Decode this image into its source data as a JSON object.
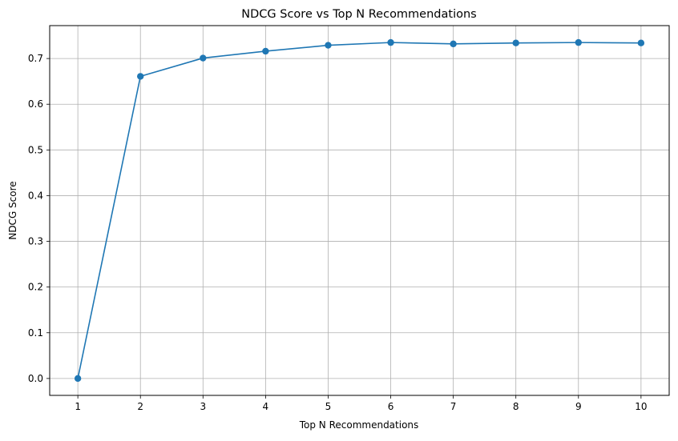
{
  "chart_data": {
    "type": "line",
    "title": "NDCG Score vs Top N Recommendations",
    "xlabel": "Top N Recommendations",
    "ylabel": "NDCG Score",
    "x": [
      1,
      2,
      3,
      4,
      5,
      6,
      7,
      8,
      9,
      10
    ],
    "series": [
      {
        "values": [
          0.0,
          0.661,
          0.701,
          0.716,
          0.729,
          0.735,
          0.732,
          0.734,
          0.735,
          0.734
        ],
        "color": "#1f77b4",
        "marker": "circle"
      }
    ],
    "xlim": [
      0.55,
      10.45
    ],
    "ylim": [
      -0.037,
      0.772
    ],
    "xticks": [
      1,
      2,
      3,
      4,
      5,
      6,
      7,
      8,
      9,
      10
    ],
    "yticks": [
      0.0,
      0.1,
      0.2,
      0.3,
      0.4,
      0.5,
      0.6,
      0.7
    ],
    "ytick_labels": [
      "0.0",
      "0.1",
      "0.2",
      "0.3",
      "0.4",
      "0.5",
      "0.6",
      "0.7"
    ],
    "grid": true,
    "legend": "none",
    "colors": {
      "line": "#1f77b4",
      "grid": "#b0b0b0",
      "axes": "#000000"
    }
  }
}
